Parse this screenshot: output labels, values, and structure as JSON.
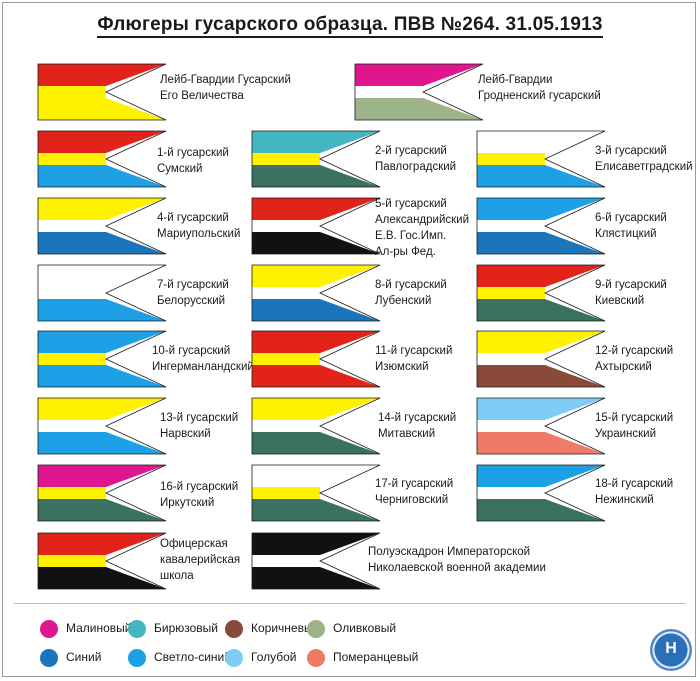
{
  "title": "Флюгеры гусарского образца. ПВВ №264. 31.05.1913",
  "colors": {
    "red": "#e2231a",
    "yellow": "#fff200",
    "white": "#ffffff",
    "black": "#111111",
    "crimson": "#e0168f",
    "turquoise": "#42b7c2",
    "brown": "#8a4a3a",
    "olive": "#9db38a",
    "dark_blue": "#1b75bb",
    "light_blue": "#1da0e5",
    "sky_blue": "#7fcdf5",
    "orange_pink": "#ef7a66",
    "green_grey": "#3a7160"
  },
  "flags": [
    {
      "id": "lg-hussar",
      "top": "red",
      "mid": "yellow",
      "bottom": "yellow",
      "lines": [
        "Лейб-Гвардии Гусарский",
        "Его Величества"
      ]
    },
    {
      "id": "lg-grodno",
      "top": "crimson",
      "mid": "white",
      "bottom": "olive",
      "lines": [
        "Лейб-Гвардии",
        "Гродненский гусарский"
      ]
    },
    {
      "id": "h1",
      "top": "red",
      "mid": "yellow",
      "bottom": "light_blue",
      "lines": [
        "1-й гусарский",
        "Сумский"
      ]
    },
    {
      "id": "h2",
      "top": "turquoise",
      "mid": "yellow",
      "bottom": "green_grey",
      "lines": [
        "2-й гусарский",
        "Павлоградский"
      ]
    },
    {
      "id": "h3",
      "top": "white",
      "mid": "yellow",
      "bottom": "light_blue",
      "lines": [
        "3-й гусарский",
        "Елисаветградский"
      ]
    },
    {
      "id": "h4",
      "top": "yellow",
      "mid": "white",
      "bottom": "dark_blue",
      "lines": [
        "4-й гусарский",
        "Мариупольский"
      ]
    },
    {
      "id": "h5",
      "top": "red",
      "mid": "white",
      "bottom": "black",
      "lines": [
        "5-й гусарский",
        "Александрийский",
        "Е.В. Гос.Имп.",
        "Ал-ры Фед."
      ]
    },
    {
      "id": "h6",
      "top": "light_blue",
      "mid": "white",
      "bottom": "dark_blue",
      "lines": [
        "6-й гусарский",
        "Клястицкий"
      ]
    },
    {
      "id": "h7",
      "top": "white",
      "mid": "white",
      "bottom": "light_blue",
      "lines": [
        "7-й гусарский",
        "Белорусский"
      ]
    },
    {
      "id": "h8",
      "top": "yellow",
      "mid": "white",
      "bottom": "dark_blue",
      "lines": [
        "8-й гусарский",
        "Лубенский"
      ]
    },
    {
      "id": "h9",
      "top": "red",
      "mid": "yellow",
      "bottom": "green_grey",
      "lines": [
        "9-й гусарский",
        "Киевский"
      ]
    },
    {
      "id": "h10",
      "top": "light_blue",
      "mid": "yellow",
      "bottom": "light_blue",
      "lines": [
        "10-й гусарский",
        "Ингерманландский"
      ]
    },
    {
      "id": "h11",
      "top": "red",
      "mid": "yellow",
      "bottom": "red",
      "lines": [
        "11-й гусарский",
        "Изюмский"
      ]
    },
    {
      "id": "h12",
      "top": "yellow",
      "mid": "white",
      "bottom": "brown",
      "lines": [
        "12-й гусарский",
        "Ахтырский"
      ]
    },
    {
      "id": "h13",
      "top": "yellow",
      "mid": "white",
      "bottom": "light_blue",
      "lines": [
        "13-й гусарский",
        "Нарвский"
      ]
    },
    {
      "id": "h14",
      "top": "yellow",
      "mid": "white",
      "bottom": "green_grey",
      "lines": [
        "14-й гусарский",
        "Митавский"
      ]
    },
    {
      "id": "h15",
      "top": "sky_blue",
      "mid": "white",
      "bottom": "orange_pink",
      "lines": [
        "15-й гусарский",
        "Украинский"
      ]
    },
    {
      "id": "h16",
      "top": "crimson",
      "mid": "yellow",
      "bottom": "green_grey",
      "lines": [
        "16-й гусарский",
        "Иркутский"
      ]
    },
    {
      "id": "h17",
      "top": "white",
      "mid": "yellow",
      "bottom": "green_grey",
      "lines": [
        "17-й гусарский",
        "Черниговский"
      ]
    },
    {
      "id": "h18",
      "top": "light_blue",
      "mid": "white",
      "bottom": "green_grey",
      "lines": [
        "18-й гусарский",
        "Нежинский"
      ]
    },
    {
      "id": "officer",
      "top": "red",
      "mid": "yellow",
      "bottom": "black",
      "lines": [
        "Офицерская",
        "кавалерийская",
        "школа"
      ]
    },
    {
      "id": "nicholas",
      "top": "black",
      "mid": "white",
      "bottom": "black",
      "lines": [
        "Полуэскадрон Императорской",
        "Николаевской военной академии"
      ]
    }
  ],
  "legend": [
    {
      "label": "Малиновый",
      "color": "crimson"
    },
    {
      "label": "Бирюзовый",
      "color": "turquoise"
    },
    {
      "label": "Коричневый",
      "color": "brown"
    },
    {
      "label": "Оливковый",
      "color": "olive"
    },
    {
      "label": "Синий",
      "color": "dark_blue"
    },
    {
      "label": "Светло-синий",
      "color": "light_blue"
    },
    {
      "label": "Голубой",
      "color": "sky_blue"
    },
    {
      "label": "Померанцевый",
      "color": "orange_pink"
    }
  ],
  "emblem": {
    "letter": "Н",
    "icon": "publisher-emblem-icon"
  }
}
